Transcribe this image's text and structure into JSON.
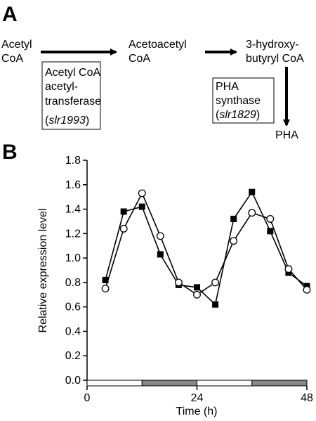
{
  "panel_a": {
    "letter": "A",
    "acetyl_coa": [
      "Acetyl",
      "CoA"
    ],
    "acetoacetyl_coa": [
      "Acetoacetyl",
      "CoA"
    ],
    "hydroxybutyryl_coa": [
      "3-hydroxy-",
      "butyryl CoA"
    ],
    "pha": "PHA",
    "enzyme1": {
      "lines": [
        "Acetyl CoA",
        "acetyl-",
        "transferase"
      ],
      "gene": "slr1993"
    },
    "enzyme2": {
      "lines": [
        "PHA",
        "synthase"
      ],
      "gene": "slr1829"
    }
  },
  "panel_b": {
    "letter": "B"
  },
  "chart_data": {
    "type": "line",
    "xlabel": "Time (h)",
    "ylabel": "Relative expression level",
    "xlim": [
      0,
      48
    ],
    "ylim": [
      0,
      1.8
    ],
    "xticks": [
      "0",
      "24",
      "48"
    ],
    "yticks": [
      "0.0",
      "0.2",
      "0.4",
      "0.6",
      "0.8",
      "1.0",
      "1.2",
      "1.4",
      "1.6",
      "1.8"
    ],
    "series": [
      {
        "marker": "filled-square",
        "x": [
          4,
          8,
          12,
          16,
          20,
          24,
          28,
          32,
          36,
          40,
          44,
          48
        ],
        "y": [
          0.82,
          1.38,
          1.42,
          1.03,
          0.78,
          0.76,
          0.62,
          1.32,
          1.54,
          1.22,
          0.88,
          0.77
        ]
      },
      {
        "marker": "open-circle",
        "x": [
          4,
          8,
          12,
          16,
          20,
          24,
          28,
          32,
          36,
          40,
          44,
          48
        ],
        "y": [
          0.75,
          1.24,
          1.53,
          1.18,
          0.8,
          0.7,
          0.8,
          1.14,
          1.37,
          1.32,
          0.91,
          0.74
        ]
      }
    ],
    "light_dark_bar": [
      {
        "from": 0,
        "to": 12,
        "state": "light",
        "color": "#ffffff"
      },
      {
        "from": 12,
        "to": 24,
        "state": "dark",
        "color": "#888888"
      },
      {
        "from": 24,
        "to": 36,
        "state": "light",
        "color": "#ffffff"
      },
      {
        "from": 36,
        "to": 48,
        "state": "dark",
        "color": "#888888"
      }
    ]
  }
}
